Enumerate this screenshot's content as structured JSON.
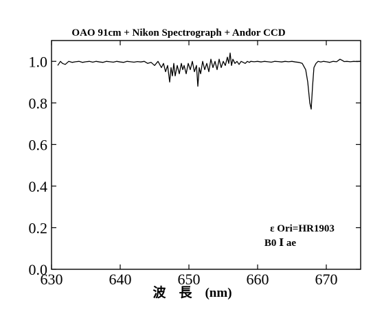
{
  "chart_data": {
    "type": "line",
    "title": "OAO 91cm + Nikon Spectrograph + Andor CCD",
    "xlabel": "波　長　(nm)",
    "ylabel": "",
    "xlim": [
      630,
      675
    ],
    "ylim": [
      0.0,
      1.1
    ],
    "x_ticks": [
      630,
      640,
      650,
      660,
      670
    ],
    "x_tick_labels": [
      "630",
      "640",
      "650",
      "660",
      "670"
    ],
    "y_ticks": [
      0.0,
      0.2,
      0.4,
      0.6,
      0.8,
      1.0
    ],
    "y_tick_labels": [
      "0.0",
      "0.2",
      "0.4",
      "0.6",
      "0.8",
      "1.0"
    ],
    "grid": false,
    "annotations": [
      "ε Ori=HR1903",
      "B0 Ⅰ ae"
    ],
    "series": [
      {
        "color": "#000000",
        "x": [
          630.9,
          631.3,
          631.6,
          632.0,
          632.5,
          633.0,
          633.5,
          634.0,
          634.5,
          635.0,
          635.5,
          636.0,
          636.5,
          637.0,
          637.5,
          638.0,
          638.5,
          639.0,
          639.5,
          640.0,
          640.5,
          641.0,
          641.5,
          642.0,
          642.5,
          643.0,
          643.5,
          644.0,
          644.5,
          645.0,
          645.5,
          646.0,
          646.3,
          646.6,
          646.9,
          647.2,
          647.4,
          647.6,
          647.8,
          648.0,
          648.3,
          648.6,
          648.9,
          649.1,
          649.3,
          649.6,
          649.9,
          650.2,
          650.5,
          650.8,
          651.1,
          651.3,
          651.5,
          651.7,
          652.0,
          652.3,
          652.6,
          652.9,
          653.2,
          653.5,
          653.8,
          654.1,
          654.4,
          654.7,
          655.0,
          655.3,
          655.6,
          655.8,
          656.0,
          656.2,
          656.4,
          656.7,
          657.0,
          657.3,
          657.6,
          657.9,
          658.2,
          658.5,
          658.8,
          659.0,
          659.5,
          660.0,
          660.5,
          661.0,
          661.5,
          662.0,
          662.5,
          663.0,
          663.5,
          664.0,
          664.5,
          665.0,
          665.5,
          666.0,
          666.5,
          667.0,
          667.3,
          667.6,
          667.8,
          668.0,
          668.2,
          668.5,
          668.8,
          669.2,
          669.6,
          670.0,
          670.5,
          671.0,
          671.5,
          672.0,
          672.3,
          672.6,
          673.0,
          673.5,
          674.0,
          674.5,
          675.0
        ],
        "y": [
          0.98,
          1.0,
          0.99,
          0.985,
          1.0,
          0.995,
          0.998,
          1.0,
          0.995,
          0.998,
          1.0,
          0.996,
          1.0,
          0.997,
          0.995,
          1.0,
          0.998,
          0.996,
          1.0,
          0.997,
          0.995,
          1.0,
          0.998,
          0.996,
          0.999,
          0.997,
          1.0,
          0.99,
          0.995,
          0.98,
          1.0,
          0.97,
          0.99,
          0.95,
          0.98,
          0.9,
          0.97,
          0.93,
          0.99,
          0.93,
          0.98,
          0.94,
          0.99,
          0.96,
          0.98,
          0.94,
          0.99,
          0.96,
          1.0,
          0.95,
          0.98,
          0.88,
          0.97,
          0.94,
          1.0,
          0.96,
          0.99,
          0.95,
          1.01,
          0.97,
          1.0,
          0.96,
          1.01,
          0.97,
          1.0,
          0.98,
          1.02,
          0.99,
          1.04,
          0.98,
          1.01,
          0.99,
          1.0,
          0.985,
          1.0,
          0.995,
          0.99,
          1.0,
          0.995,
          1.0,
          0.998,
          1.0,
          0.997,
          1.0,
          0.998,
          0.996,
          1.0,
          0.999,
          0.997,
          1.0,
          0.998,
          1.0,
          0.997,
          0.995,
          0.99,
          0.96,
          0.9,
          0.8,
          0.77,
          0.88,
          0.97,
          0.99,
          1.0,
          0.997,
          1.0,
          0.998,
          0.995,
          1.0,
          0.998,
          1.01,
          1.005,
          0.999,
          1.0,
          0.998,
          1.0,
          0.999,
          1.0
        ]
      }
    ]
  }
}
